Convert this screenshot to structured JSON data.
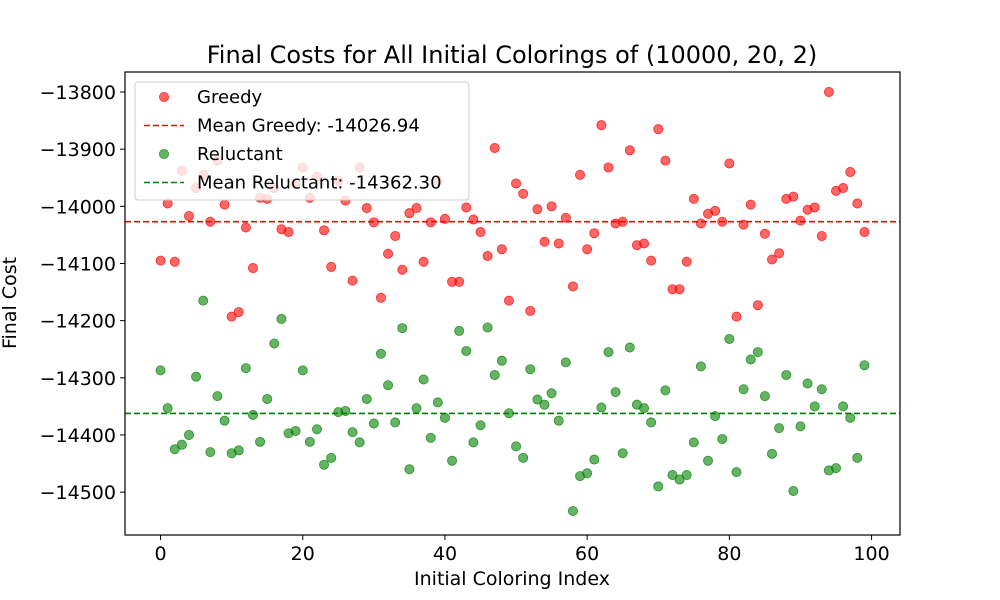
{
  "chart_data": {
    "type": "scatter",
    "title": "Final Costs for All Initial Colorings of (10000, 20, 2)",
    "xlabel": "Initial Coloring Index",
    "ylabel": "Final Cost",
    "xlim": [
      -5,
      104
    ],
    "ylim": [
      -14575,
      -13765
    ],
    "xticks": [
      0,
      20,
      40,
      60,
      80,
      100
    ],
    "yticks": [
      -14500,
      -14400,
      -14300,
      -14200,
      -14100,
      -14000,
      -13900,
      -13800
    ],
    "grid": false,
    "legend_position": "top-left",
    "series": [
      {
        "name": "Greedy",
        "color": "#ff0000",
        "x": [
          0,
          1,
          2,
          3,
          4,
          5,
          6,
          7,
          8,
          9,
          10,
          11,
          12,
          13,
          14,
          15,
          16,
          17,
          18,
          19,
          20,
          21,
          22,
          23,
          24,
          25,
          26,
          27,
          28,
          29,
          30,
          31,
          32,
          33,
          34,
          35,
          36,
          37,
          38,
          39,
          40,
          41,
          42,
          43,
          44,
          45,
          46,
          47,
          48,
          49,
          50,
          51,
          52,
          53,
          54,
          55,
          56,
          57,
          58,
          59,
          60,
          61,
          62,
          63,
          64,
          65,
          66,
          67,
          68,
          69,
          70,
          71,
          72,
          73,
          74,
          75,
          76,
          77,
          78,
          79,
          80,
          81,
          82,
          83,
          84,
          85,
          86,
          87,
          88,
          89,
          90,
          91,
          92,
          93,
          94,
          95,
          96,
          97,
          98,
          99
        ],
        "y": [
          -14095,
          -13995,
          -14097,
          -13938,
          -14017,
          -13968,
          -13945,
          -14027,
          -13920,
          -13997,
          -14193,
          -14185,
          -14037,
          -14108,
          -13985,
          -13987,
          -13968,
          -14040,
          -14045,
          -13960,
          -13932,
          -13985,
          -13948,
          -14042,
          -14106,
          -13955,
          -13990,
          -14130,
          -13932,
          -14003,
          -14028,
          -14160,
          -14083,
          -14052,
          -14111,
          -14012,
          -14003,
          -14097,
          -14028,
          -13955,
          -14022,
          -14132,
          -14132,
          -14002,
          -14023,
          -14045,
          -14087,
          -13898,
          -14075,
          -14165,
          -13960,
          -13978,
          -14183,
          -14005,
          -14062,
          -14000,
          -14065,
          -14020,
          -14140,
          -13945,
          -14075,
          -14047,
          -13858,
          -13932,
          -14030,
          -14027,
          -13902,
          -14068,
          -14065,
          -14095,
          -13865,
          -13920,
          -14145,
          -14145,
          -14097,
          -13987,
          -14030,
          -14013,
          -14008,
          -14027,
          -13925,
          -14193,
          -14032,
          -13997,
          -14173,
          -14048,
          -14093,
          -14082,
          -13987,
          -13983,
          -14025,
          -14006,
          -14002,
          -14052,
          -13800,
          -13973,
          -13968,
          -13940,
          -13995,
          -14045
        ]
      },
      {
        "name": "Reluctant",
        "color": "#008000",
        "x": [
          0,
          1,
          2,
          3,
          4,
          5,
          6,
          7,
          8,
          9,
          10,
          11,
          12,
          13,
          14,
          15,
          16,
          17,
          18,
          19,
          20,
          21,
          22,
          23,
          24,
          25,
          26,
          27,
          28,
          29,
          30,
          31,
          32,
          33,
          34,
          35,
          36,
          37,
          38,
          39,
          40,
          41,
          42,
          43,
          44,
          45,
          46,
          47,
          48,
          49,
          50,
          51,
          52,
          53,
          54,
          55,
          56,
          57,
          58,
          59,
          60,
          61,
          62,
          63,
          64,
          65,
          66,
          67,
          68,
          69,
          70,
          71,
          72,
          73,
          74,
          75,
          76,
          77,
          78,
          79,
          80,
          81,
          82,
          83,
          84,
          85,
          86,
          87,
          88,
          89,
          90,
          91,
          92,
          93,
          94,
          95,
          96,
          97,
          98,
          99
        ],
        "y": [
          -14287,
          -14353,
          -14425,
          -14417,
          -14400,
          -14298,
          -14165,
          -14430,
          -14332,
          -14375,
          -14432,
          -14427,
          -14283,
          -14365,
          -14412,
          -14337,
          -14240,
          -14197,
          -14397,
          -14393,
          -14287,
          -14412,
          -14390,
          -14452,
          -14440,
          -14360,
          -14358,
          -14395,
          -14413,
          -14337,
          -14380,
          -14258,
          -14313,
          -14378,
          -14213,
          -14460,
          -14353,
          -14303,
          -14405,
          -14343,
          -14370,
          -14445,
          -14218,
          -14253,
          -14413,
          -14383,
          -14212,
          -14295,
          -14270,
          -14362,
          -14420,
          -14440,
          -14285,
          -14338,
          -14347,
          -14327,
          -14375,
          -14273,
          -14533,
          -14472,
          -14467,
          -14443,
          -14352,
          -14255,
          -14325,
          -14432,
          -14247,
          -14347,
          -14353,
          -14378,
          -14490,
          -14322,
          -14470,
          -14478,
          -14470,
          -14413,
          -14280,
          -14445,
          -14367,
          -14407,
          -14232,
          -14465,
          -14320,
          -14268,
          -14255,
          -14332,
          -14433,
          -14388,
          -14295,
          -14498,
          -14385,
          -14310,
          -14350,
          -14320,
          -14462,
          -14458,
          -14350,
          -14370,
          -14440,
          -14278
        ]
      }
    ],
    "mean_lines": [
      {
        "label": "Mean Greedy: -14026.94",
        "value": -14026.94,
        "color": "#ff0000"
      },
      {
        "label": "Mean Reluctant: -14362.30",
        "value": -14362.3,
        "color": "#008000"
      }
    ],
    "legend": [
      {
        "kind": "marker",
        "label": "Greedy",
        "color": "#ff0000"
      },
      {
        "kind": "line",
        "label": "Mean Greedy: -14026.94",
        "color": "#ff0000"
      },
      {
        "kind": "marker",
        "label": "Reluctant",
        "color": "#008000"
      },
      {
        "kind": "line",
        "label": "Mean Reluctant: -14362.30",
        "color": "#008000"
      }
    ]
  }
}
